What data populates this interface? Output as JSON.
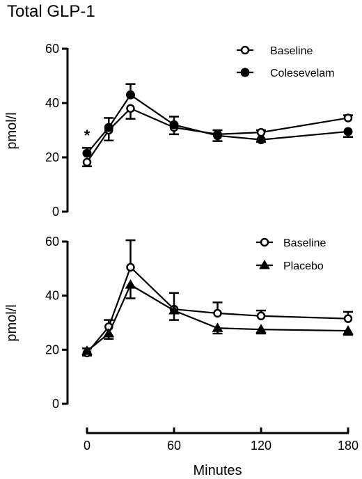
{
  "chart_data": [
    {
      "type": "line",
      "title": "Total GLP-1",
      "ylabel": "pmol/l",
      "xlabel": "",
      "x": [
        0,
        15,
        30,
        60,
        90,
        120,
        180
      ],
      "xlim": [
        0,
        180
      ],
      "ylim": [
        0,
        60
      ],
      "yticks": [
        0,
        20,
        40,
        60
      ],
      "legend_position": "top-right",
      "annotations": [
        {
          "text": "*",
          "x": 0
        }
      ],
      "series": [
        {
          "name": "Baseline",
          "marker": "open-circle",
          "values": [
            18.2,
            30.0,
            38.0,
            31.0,
            28.5,
            29.2,
            34.5
          ],
          "errors": [
            1.5,
            3.8,
            3.8,
            2.5,
            1.5,
            0.8,
            1.0
          ]
        },
        {
          "name": "Colesevelam",
          "marker": "filled-circle",
          "values": [
            21.5,
            31.0,
            43.0,
            32.0,
            28.0,
            26.5,
            29.5
          ],
          "errors": [
            2.0,
            3.5,
            4.0,
            3.0,
            2.0,
            0.8,
            2.0
          ]
        }
      ]
    },
    {
      "type": "line",
      "title": "",
      "ylabel": "pmol/l",
      "xlabel": "Minutes",
      "x": [
        0,
        15,
        30,
        60,
        90,
        120,
        180
      ],
      "xlim": [
        0,
        180
      ],
      "ylim": [
        0,
        60
      ],
      "yticks": [
        0,
        20,
        40,
        60
      ],
      "xticks": [
        0,
        60,
        120,
        180
      ],
      "legend_position": "top-right",
      "series": [
        {
          "name": "Baseline",
          "marker": "open-circle",
          "values": [
            18.8,
            28.5,
            50.5,
            35.0,
            33.5,
            32.5,
            31.5
          ],
          "errors": [
            1.0,
            2.5,
            10.0,
            6.0,
            4.0,
            2.0,
            2.5
          ]
        },
        {
          "name": "Placebo",
          "marker": "filled-triangle",
          "values": [
            19.5,
            26.0,
            44.0,
            34.5,
            28.0,
            27.5,
            27.0
          ],
          "errors": [
            1.0,
            2.0,
            5.0,
            3.5,
            2.0,
            1.5,
            1.5
          ]
        }
      ]
    }
  ]
}
